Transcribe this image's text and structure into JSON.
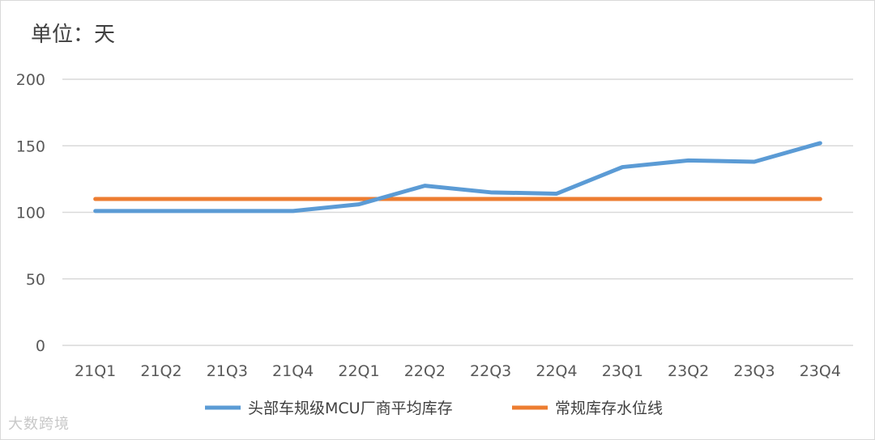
{
  "chart_data": {
    "type": "line",
    "unit_label": "单位：天",
    "categories": [
      "21Q1",
      "21Q2",
      "21Q3",
      "21Q4",
      "22Q1",
      "22Q2",
      "22Q3",
      "22Q4",
      "23Q1",
      "23Q2",
      "23Q3",
      "23Q4"
    ],
    "ylim": [
      0,
      200
    ],
    "yticks": [
      0,
      50,
      100,
      150,
      200
    ],
    "grid": true,
    "legend_position": "bottom",
    "series": [
      {
        "name": "头部车规级MCU厂商平均库存",
        "color": "#5b9bd5",
        "values": [
          101,
          101,
          101,
          101,
          106,
          120,
          115,
          114,
          134,
          139,
          138,
          152
        ]
      },
      {
        "name": "常规库存水位线",
        "color": "#ed7d31",
        "values": [
          110,
          110,
          110,
          110,
          110,
          110,
          110,
          110,
          110,
          110,
          110,
          110
        ]
      }
    ]
  },
  "watermark": "大数跨境"
}
